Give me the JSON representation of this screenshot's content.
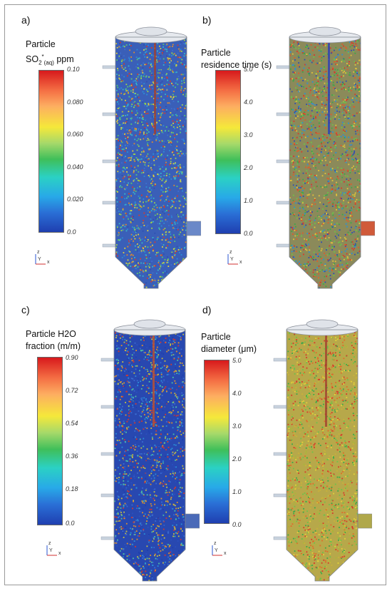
{
  "panels": [
    {
      "label": "a)",
      "title_line1": "Particle",
      "title_line2": "SO2*(aq) ppm",
      "ticks": [
        "0.10",
        "0.080",
        "0.060",
        "0.040",
        "0.020",
        "0.0"
      ],
      "speckle": {
        "base": "#3a5fb8",
        "mix": [
          "#2f4fb0",
          "#3d6fd0",
          "#2a8fd8",
          "#39b6c9",
          "#5ac86e",
          "#9fd44a",
          "#e3d23a",
          "#e08a2c",
          "#d8392a"
        ],
        "density": "blue-dominant"
      }
    },
    {
      "label": "b)",
      "title_line1": "Particle",
      "title_line2": "residence time (s)",
      "ticks": [
        "5.0",
        "4.0",
        "3.0",
        "2.0",
        "1.0",
        "0.0"
      ],
      "speckle": {
        "base": "#8b8a5a",
        "mix": [
          "#d8392a",
          "#e05a2a",
          "#3aa84a",
          "#6cc24a",
          "#2f4fb0",
          "#e3c23a",
          "#2a8fd8"
        ],
        "density": "red-green-mix"
      }
    },
    {
      "label": "c)",
      "title_line1": "Particle H2O",
      "title_line2": "fraction (m/m)",
      "ticks": [
        "0.90",
        "0.72",
        "0.54",
        "0.36",
        "0.18",
        "0.0"
      ],
      "speckle": {
        "base": "#2848b0",
        "mix": [
          "#1f3fae",
          "#2a50c0",
          "#3a6cd0",
          "#2a8fd8",
          "#4fc0a0",
          "#c8c040",
          "#e0902c",
          "#d8392a"
        ],
        "density": "blue-dominant"
      }
    },
    {
      "label": "d)",
      "title_line1": "Particle",
      "title_line2": "diameter (μm)",
      "ticks": [
        "5.0",
        "4.0",
        "3.0",
        "2.0",
        "1.0",
        "0.0"
      ],
      "speckle": {
        "base": "#b7a84a",
        "mix": [
          "#c9b23a",
          "#a8b83a",
          "#d8392a",
          "#e06a2a",
          "#6cc24a",
          "#3aa84a",
          "#e3d23a"
        ],
        "density": "yellow-red-mix"
      }
    }
  ],
  "axis_triad": {
    "z": "z",
    "y": "Y",
    "x": "x"
  }
}
